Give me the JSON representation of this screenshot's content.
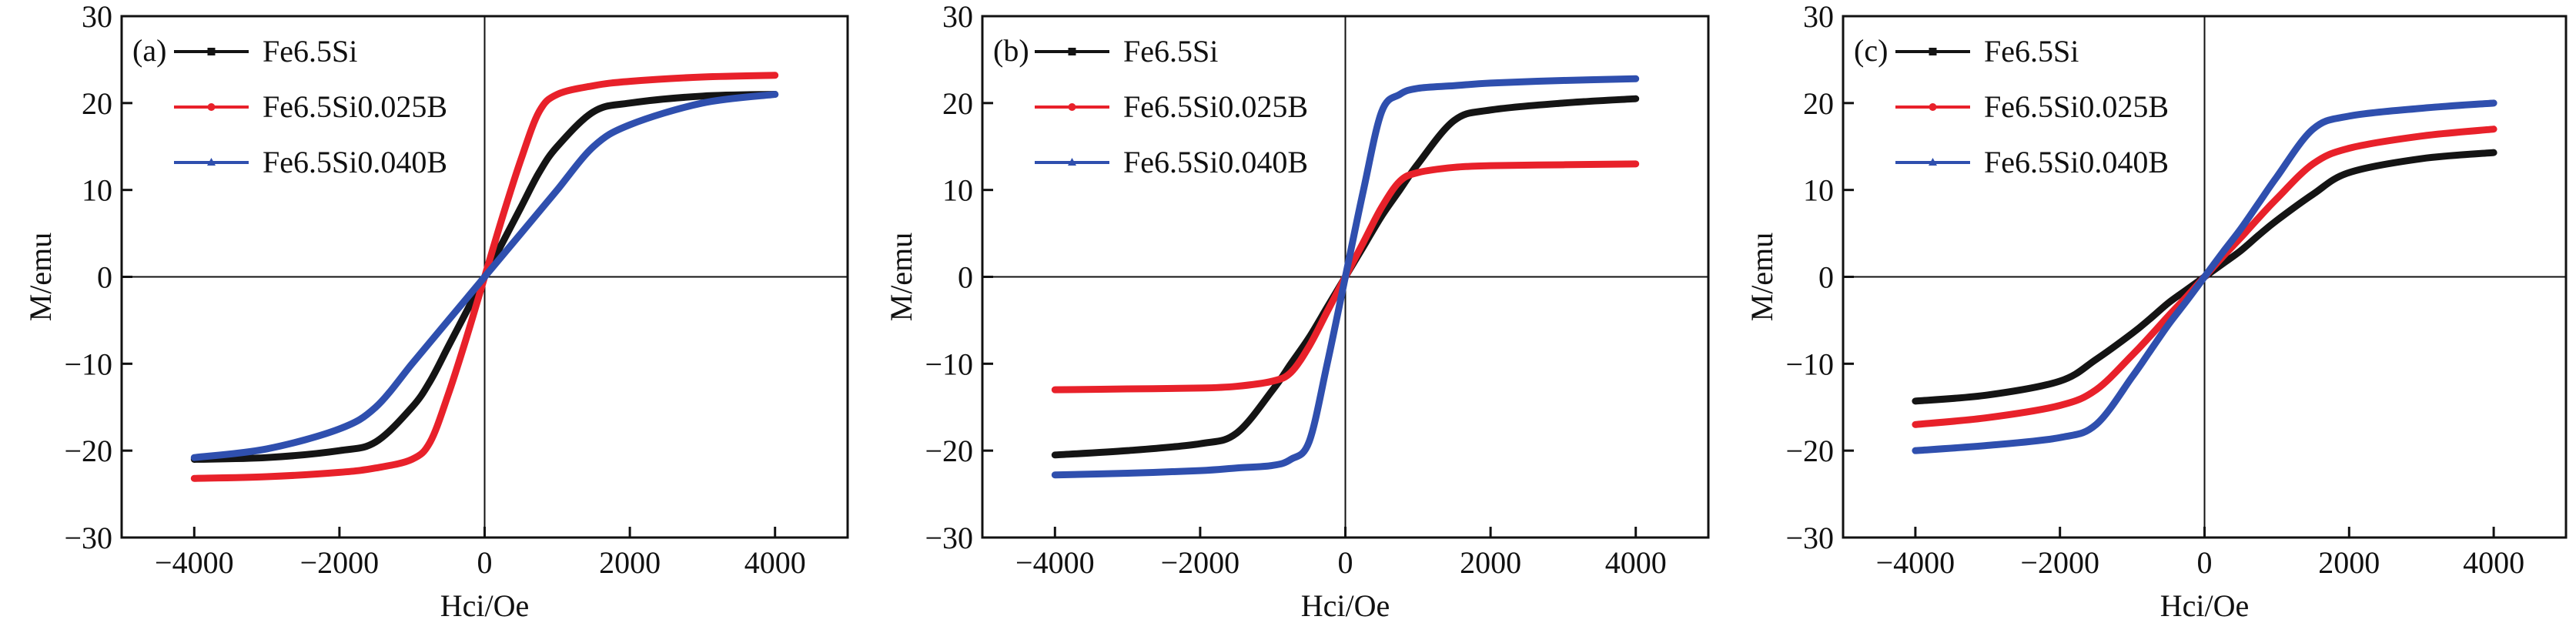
{
  "colors": {
    "Fe6.5Si": "#141414",
    "Fe6.5Si0.025B": "#e8212a",
    "Fe6.5Si0.040B": "#2f4fae"
  },
  "chart_data": [
    {
      "type": "line",
      "panel_label": "(a)",
      "xlabel": "Hci/Oe",
      "ylabel": "M/emu",
      "xlim": [
        -5000,
        5000
      ],
      "ylim": [
        -30,
        30
      ],
      "xticks": [
        "-4000",
        "-2000",
        "0",
        "2000",
        "4000"
      ],
      "yticks": [
        "-30",
        "-20",
        "-10",
        "0",
        "10",
        "20",
        "30"
      ],
      "legend_position": "top-left",
      "x": [
        -4000,
        -3000,
        -2000,
        -1500,
        -1000,
        -750,
        -500,
        -250,
        0,
        250,
        500,
        750,
        1000,
        1500,
        2000,
        3000,
        4000
      ],
      "series": [
        {
          "name": "Fe6.5Si",
          "marker": "square",
          "y": [
            -21,
            -20.8,
            -20,
            -19,
            -15,
            -12,
            -8,
            -4,
            0,
            4,
            8,
            12,
            15,
            19,
            20,
            20.8,
            21
          ]
        },
        {
          "name": "Fe6.5Si0.025B",
          "marker": "circle",
          "y": [
            -23.2,
            -23,
            -22.5,
            -22,
            -21,
            -19,
            -13.5,
            -7,
            0,
            7,
            13.5,
            19,
            21,
            22,
            22.5,
            23,
            23.2
          ]
        },
        {
          "name": "Fe6.5Si0.040B",
          "marker": "triangle",
          "y": [
            -20.8,
            -19.8,
            -17.5,
            -15,
            -10,
            -7.5,
            -5,
            -2.5,
            0,
            2.5,
            5,
            7.5,
            10,
            15,
            17.5,
            20,
            21
          ]
        }
      ]
    },
    {
      "type": "line",
      "panel_label": "(b)",
      "xlabel": "Hci/Oe",
      "ylabel": "M/emu",
      "xlim": [
        -5000,
        5000
      ],
      "ylim": [
        -30,
        30
      ],
      "xticks": [
        "-4000",
        "-2000",
        "0",
        "2000",
        "4000"
      ],
      "yticks": [
        "-30",
        "-20",
        "-10",
        "0",
        "10",
        "20",
        "30"
      ],
      "legend_position": "top-left",
      "x": [
        -4000,
        -3000,
        -2000,
        -1500,
        -1000,
        -750,
        -500,
        -250,
        0,
        250,
        500,
        750,
        1000,
        1500,
        2000,
        3000,
        4000
      ],
      "series": [
        {
          "name": "Fe6.5Si",
          "marker": "square",
          "y": [
            -20.5,
            -20,
            -19.2,
            -18,
            -13,
            -10,
            -7,
            -3.5,
            0,
            3.5,
            7,
            10,
            13,
            18,
            19.2,
            20,
            20.5
          ]
        },
        {
          "name": "Fe6.5Si0.025B",
          "marker": "circle",
          "y": [
            -13,
            -12.9,
            -12.8,
            -12.6,
            -12,
            -11,
            -8,
            -4,
            0,
            4,
            8,
            11,
            12,
            12.6,
            12.8,
            12.9,
            13
          ]
        },
        {
          "name": "Fe6.5Si0.040B",
          "marker": "triangle",
          "y": [
            -22.8,
            -22.6,
            -22.3,
            -22,
            -21.7,
            -21,
            -19,
            -10,
            0,
            10,
            19,
            21,
            21.7,
            22,
            22.3,
            22.6,
            22.8
          ]
        }
      ]
    },
    {
      "type": "line",
      "panel_label": "(c)",
      "xlabel": "Hci/Oe",
      "ylabel": "M/emu",
      "xlim": [
        -5000,
        5000
      ],
      "ylim": [
        -30,
        30
      ],
      "xticks": [
        "-4000",
        "-2000",
        "0",
        "2000",
        "4000"
      ],
      "yticks": [
        "-30",
        "-20",
        "-10",
        "0",
        "10",
        "20",
        "30"
      ],
      "legend_position": "top-left",
      "x": [
        -4000,
        -3000,
        -2000,
        -1500,
        -1000,
        -750,
        -500,
        -250,
        0,
        250,
        500,
        750,
        1000,
        1500,
        2000,
        3000,
        4000
      ],
      "series": [
        {
          "name": "Fe6.5Si",
          "marker": "square",
          "y": [
            -14.3,
            -13.6,
            -12,
            -9.5,
            -6.5,
            -4.8,
            -3,
            -1.5,
            0,
            1.5,
            3,
            4.8,
            6.5,
            9.5,
            12,
            13.6,
            14.3
          ]
        },
        {
          "name": "Fe6.5Si0.025B",
          "marker": "circle",
          "y": [
            -17,
            -16.2,
            -14.8,
            -13,
            -9,
            -6.8,
            -4.5,
            -2.3,
            0,
            2.3,
            4.5,
            6.8,
            9,
            13,
            14.8,
            16.2,
            17
          ]
        },
        {
          "name": "Fe6.5Si0.040B",
          "marker": "triangle",
          "y": [
            -20,
            -19.4,
            -18.5,
            -17,
            -11.5,
            -8.5,
            -5.5,
            -2.8,
            0,
            2.8,
            5.5,
            8.5,
            11.5,
            17,
            18.5,
            19.4,
            20
          ]
        }
      ]
    }
  ]
}
